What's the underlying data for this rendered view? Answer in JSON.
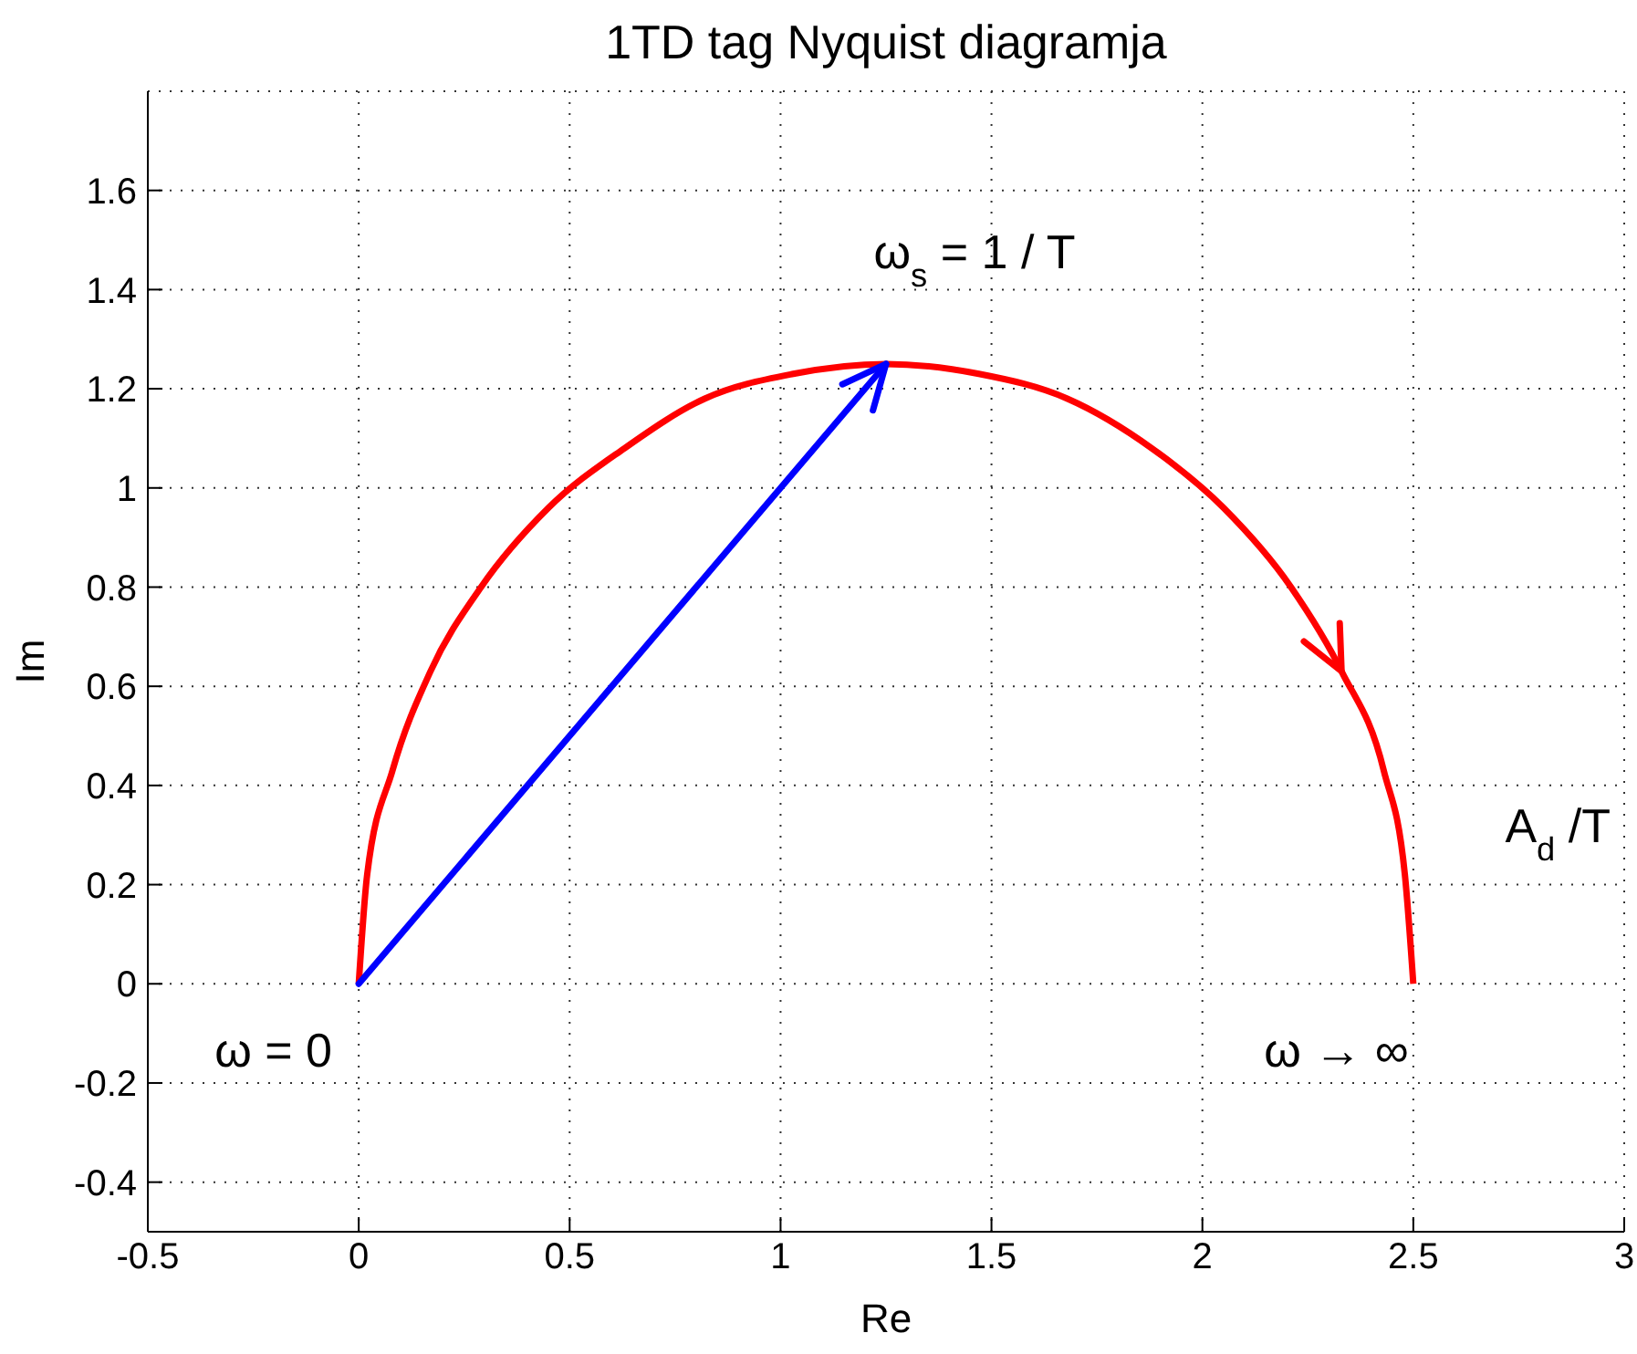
{
  "chart_data": {
    "type": "line",
    "title": "1TD tag Nyquist diagramja",
    "xlabel": "Re",
    "ylabel": "Im",
    "xlim": [
      -0.5,
      3
    ],
    "xticks": [
      -0.5,
      0,
      0.5,
      1,
      1.5,
      2,
      2.5,
      3
    ],
    "ylim": [
      -0.5,
      1.8
    ],
    "yticks": [
      -0.4,
      -0.2,
      0,
      0.2,
      0.4,
      0.6,
      0.8,
      1,
      1.2,
      1.4,
      1.6
    ],
    "grid": true,
    "marker": "none",
    "line_style": "solid",
    "series": [
      {
        "color": "#ff0000",
        "x": [
          0,
          0.02,
          0.08,
          0.17,
          0.29,
          0.45,
          0.63,
          0.82,
          1.03,
          1.25,
          1.47,
          1.68,
          1.88,
          2.05,
          2.21,
          2.33,
          2.43,
          2.48,
          2.5
        ],
        "values": [
          0,
          0.22,
          0.43,
          0.63,
          0.8,
          0.96,
          1.08,
          1.18,
          1.23,
          1.25,
          1.23,
          1.18,
          1.08,
          0.96,
          0.8,
          0.63,
          0.43,
          0.22,
          0
        ]
      }
    ],
    "annotations": [
      "ω$_{s}$ = 1 / T",
      "A$_{d}$ /T",
      "ω = 0",
      "ω → ∞"
    ]
  }
}
